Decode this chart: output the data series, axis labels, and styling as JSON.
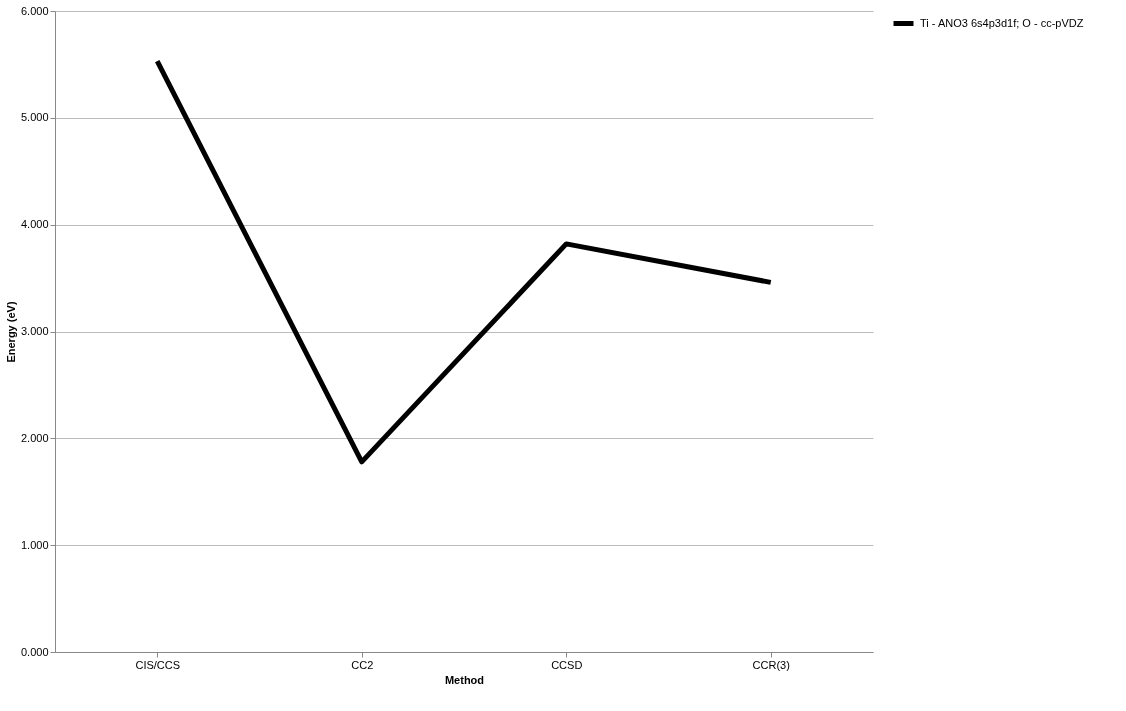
{
  "chart_data": {
    "type": "line",
    "xlabel": "Method",
    "ylabel": "Energy (eV)",
    "categories": [
      "CIS/CCS",
      "CC2",
      "CCSD",
      "CCR(3)"
    ],
    "series": [
      {
        "name": "Ti - ANO3 6s4p3d1f; O - cc-pVDZ",
        "color": "#000000",
        "values": [
          5.53,
          1.78,
          3.82,
          3.46
        ]
      }
    ],
    "ylim": [
      0,
      6
    ],
    "yticks": [
      {
        "value": 0,
        "label": "0.000"
      },
      {
        "value": 1,
        "label": "1.000"
      },
      {
        "value": 2,
        "label": "2.000"
      },
      {
        "value": 3,
        "label": "3.000"
      },
      {
        "value": 4,
        "label": "4.000"
      },
      {
        "value": 5,
        "label": "5.000"
      },
      {
        "value": 6,
        "label": "6.000"
      }
    ],
    "grid": "y",
    "legend": "right",
    "marker": "none",
    "line_style": "solid"
  }
}
